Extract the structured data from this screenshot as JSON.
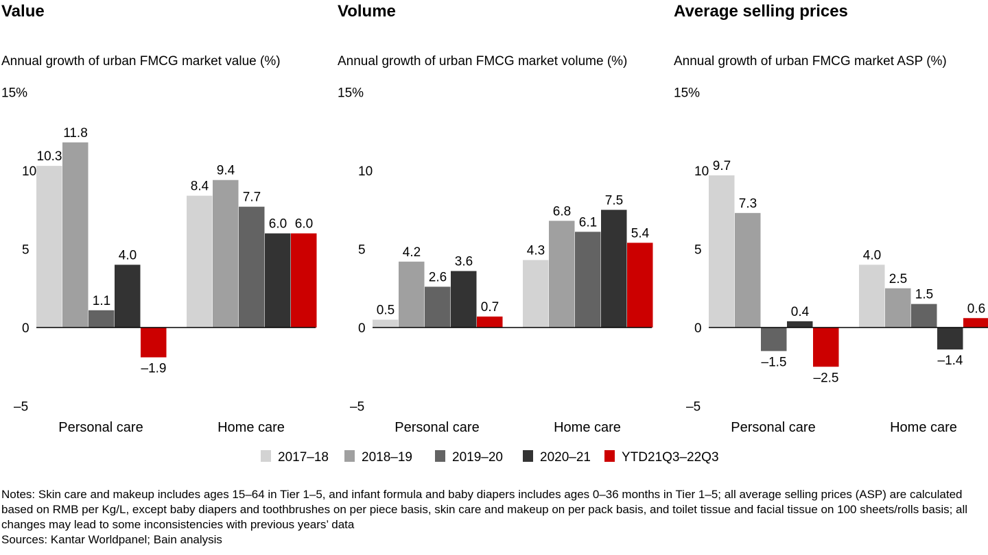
{
  "legend": [
    {
      "label": "2017–18",
      "color": "#d3d3d3"
    },
    {
      "label": "2018–19",
      "color": "#a0a0a0"
    },
    {
      "label": "2019–20",
      "color": "#636363"
    },
    {
      "label": "2020–21",
      "color": "#333333"
    },
    {
      "label": "YTD21Q3–22Q3",
      "color": "#cc0000"
    }
  ],
  "chart_data": [
    {
      "type": "bar",
      "title": "Value",
      "subtitle": "Annual growth of urban FMCG market value (%)",
      "ylim": [
        -5,
        15
      ],
      "yticks": [
        "15%",
        "10",
        "5",
        "0",
        "–5"
      ],
      "categories": [
        "Personal care",
        "Home care"
      ],
      "series": [
        {
          "name": "2017–18",
          "values": [
            10.3,
            8.4
          ],
          "labels": [
            "10.3",
            "8.4"
          ]
        },
        {
          "name": "2018–19",
          "values": [
            11.8,
            9.4
          ],
          "labels": [
            "11.8",
            "9.4"
          ]
        },
        {
          "name": "2019–20",
          "values": [
            1.1,
            7.7
          ],
          "labels": [
            "1.1",
            "7.7"
          ]
        },
        {
          "name": "2020–21",
          "values": [
            4.0,
            6.0
          ],
          "labels": [
            "4.0",
            "6.0"
          ]
        },
        {
          "name": "YTD21Q3–22Q3",
          "values": [
            -1.9,
            6.0
          ],
          "labels": [
            "–1.9",
            "6.0"
          ]
        }
      ]
    },
    {
      "type": "bar",
      "title": "Volume",
      "subtitle": "Annual growth of urban FMCG market volume (%)",
      "ylim": [
        -5,
        15
      ],
      "yticks": [
        "15%",
        "10",
        "5",
        "0",
        "–5"
      ],
      "categories": [
        "Personal care",
        "Home care"
      ],
      "series": [
        {
          "name": "2017–18",
          "values": [
            0.5,
            4.3
          ],
          "labels": [
            "0.5",
            "4.3"
          ]
        },
        {
          "name": "2018–19",
          "values": [
            4.2,
            6.8
          ],
          "labels": [
            "4.2",
            "6.8"
          ]
        },
        {
          "name": "2019–20",
          "values": [
            2.6,
            6.1
          ],
          "labels": [
            "2.6",
            "6.1"
          ]
        },
        {
          "name": "2020–21",
          "values": [
            3.6,
            7.5
          ],
          "labels": [
            "3.6",
            "7.5"
          ]
        },
        {
          "name": "YTD21Q3–22Q3",
          "values": [
            0.7,
            5.4
          ],
          "labels": [
            "0.7",
            "5.4"
          ]
        }
      ]
    },
    {
      "type": "bar",
      "title": "Average selling prices",
      "subtitle": "Annual growth of urban FMCG market ASP (%)",
      "ylim": [
        -5,
        15
      ],
      "yticks": [
        "15%",
        "10",
        "5",
        "0",
        "–5"
      ],
      "categories": [
        "Personal care",
        "Home care"
      ],
      "series": [
        {
          "name": "2017–18",
          "values": [
            9.7,
            4.0
          ],
          "labels": [
            "9.7",
            "4.0"
          ]
        },
        {
          "name": "2018–19",
          "values": [
            7.3,
            2.5
          ],
          "labels": [
            "7.3",
            "2.5"
          ]
        },
        {
          "name": "2019–20",
          "values": [
            -1.5,
            1.5
          ],
          "labels": [
            "–1.5",
            "1.5"
          ]
        },
        {
          "name": "2020–21",
          "values": [
            0.4,
            -1.4
          ],
          "labels": [
            "0.4",
            "–1.4"
          ]
        },
        {
          "name": "YTD21Q3–22Q3",
          "values": [
            -2.5,
            0.6
          ],
          "labels": [
            "–2.5",
            "0.6"
          ]
        }
      ]
    }
  ],
  "notes": "Notes: Skin care and makeup includes ages 15–64 in Tier 1–5, and infant formula and baby diapers includes ages 0–36 months in Tier 1–5; all average selling prices (ASP) are calculated based on RMB per Kg/L, except baby diapers and toothbrushes on per piece basis, skin care and makeup on per pack basis, and toilet tissue and facial tissue on 100 sheets/rolls basis; all changes may lead to some inconsistencies with previous years’ data",
  "sources": "Sources: Kantar Worldpanel; Bain analysis"
}
